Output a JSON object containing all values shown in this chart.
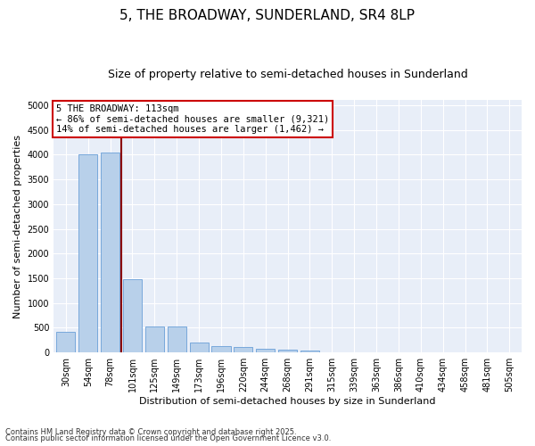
{
  "title": "5, THE BROADWAY, SUNDERLAND, SR4 8LP",
  "subtitle": "Size of property relative to semi-detached houses in Sunderland",
  "xlabel": "Distribution of semi-detached houses by size in Sunderland",
  "ylabel": "Number of semi-detached properties",
  "categories": [
    "30sqm",
    "54sqm",
    "78sqm",
    "101sqm",
    "125sqm",
    "149sqm",
    "173sqm",
    "196sqm",
    "220sqm",
    "244sqm",
    "268sqm",
    "291sqm",
    "315sqm",
    "339sqm",
    "363sqm",
    "386sqm",
    "410sqm",
    "434sqm",
    "458sqm",
    "481sqm",
    "505sqm"
  ],
  "values": [
    420,
    4000,
    4050,
    1490,
    530,
    535,
    200,
    130,
    110,
    80,
    50,
    40,
    0,
    0,
    0,
    0,
    0,
    0,
    0,
    0,
    0
  ],
  "bar_color": "#b8d0ea",
  "bar_edge_color": "#6a9fd8",
  "vline_x": 2.5,
  "vline_color": "#8b0000",
  "annotation_title": "5 THE BROADWAY: 113sqm",
  "annotation_line1": "← 86% of semi-detached houses are smaller (9,321)",
  "annotation_line2": "14% of semi-detached houses are larger (1,462) →",
  "annotation_box_color": "#cc0000",
  "ylim": [
    0,
    5100
  ],
  "yticks": [
    0,
    500,
    1000,
    1500,
    2000,
    2500,
    3000,
    3500,
    4000,
    4500,
    5000
  ],
  "footnote1": "Contains HM Land Registry data © Crown copyright and database right 2025.",
  "footnote2": "Contains public sector information licensed under the Open Government Licence v3.0.",
  "bg_color": "#e8eef8",
  "grid_color": "#ffffff",
  "title_fontsize": 11,
  "subtitle_fontsize": 9,
  "label_fontsize": 8,
  "tick_fontsize": 7,
  "annot_fontsize": 7.5
}
